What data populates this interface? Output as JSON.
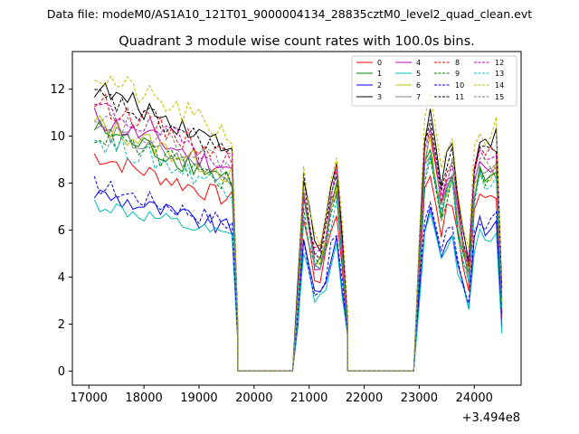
{
  "figure": {
    "suptitle": "Data file: modeM0/AS1A10_121T01_9000004134_28835cztM0_level2_quad_clean.evt"
  },
  "chart_data": {
    "type": "line",
    "title": "Quadrant 3 module wise count rates with 100.0s bins.",
    "xlabel": "",
    "ylabel": "",
    "offset_label": "+3.494e8",
    "xlim": [
      16700,
      24850
    ],
    "ylim": [
      -0.6,
      13.6
    ],
    "xticks": [
      17000,
      18000,
      19000,
      20000,
      21000,
      22000,
      23000,
      24000
    ],
    "xtick_labels": [
      "17000",
      "18000",
      "19000",
      "20000",
      "21000",
      "22000",
      "23000",
      "24000"
    ],
    "yticks": [
      0,
      2,
      4,
      6,
      8,
      10,
      12
    ],
    "ytick_labels": [
      "0",
      "2",
      "4",
      "6",
      "8",
      "10",
      "12"
    ],
    "legend_location": "top-right",
    "legend_columns": 4,
    "series": [
      {
        "name": "0",
        "color": "#ff0000",
        "dash": "solid",
        "level": 8.0,
        "noise": 0.6
      },
      {
        "name": "1",
        "color": "#008000",
        "dash": "solid",
        "level": 9.0,
        "noise": 0.7
      },
      {
        "name": "2",
        "color": "#0000ff",
        "dash": "solid",
        "level": 6.6,
        "noise": 0.6
      },
      {
        "name": "3",
        "color": "#000000",
        "dash": "solid",
        "level": 10.5,
        "noise": 0.7
      },
      {
        "name": "4",
        "color": "#bf00bf",
        "dash": "solid",
        "level": 9.4,
        "noise": 0.7
      },
      {
        "name": "5",
        "color": "#00bfbf",
        "dash": "solid",
        "level": 6.2,
        "noise": 0.5
      },
      {
        "name": "6",
        "color": "#bfbf00",
        "dash": "solid",
        "level": 9.2,
        "noise": 0.7
      },
      {
        "name": "7",
        "color": "#808080",
        "dash": "solid",
        "level": 9.0,
        "noise": 0.6
      },
      {
        "name": "8",
        "color": "#ff0000",
        "dash": "dashed",
        "level": 10.0,
        "noise": 0.7
      },
      {
        "name": "9",
        "color": "#008000",
        "dash": "dashed",
        "level": 8.8,
        "noise": 0.7
      },
      {
        "name": "10",
        "color": "#0000ff",
        "dash": "dashed",
        "level": 6.9,
        "noise": 0.6
      },
      {
        "name": "11",
        "color": "#000000",
        "dash": "dashed",
        "level": 10.2,
        "noise": 0.7
      },
      {
        "name": "12",
        "color": "#bf00bf",
        "dash": "dashed",
        "level": 9.8,
        "noise": 0.7
      },
      {
        "name": "13",
        "color": "#00bfbf",
        "dash": "dashed",
        "level": 8.6,
        "noise": 0.7
      },
      {
        "name": "14",
        "color": "#bfbf00",
        "dash": "dashed",
        "level": 11.0,
        "noise": 0.8
      },
      {
        "name": "15",
        "color": "#808080",
        "dash": "dashed",
        "level": 9.6,
        "noise": 0.7
      }
    ],
    "time_profile": {
      "bin_width": 100,
      "segments": [
        {
          "from": 17100,
          "to": 19650,
          "shape": "decay",
          "start_factor": 1.15,
          "end_factor": 0.9
        },
        {
          "from": 19700,
          "to": 20700,
          "shape": "zero"
        },
        {
          "from": 20800,
          "to": 21650,
          "shape": "double_peak",
          "factors": [
            0.35,
            0.8,
            0.65,
            0.5,
            0.5,
            0.6,
            0.75,
            0.85,
            0.55,
            0.2
          ]
        },
        {
          "from": 21700,
          "to": 22900,
          "shape": "zero"
        },
        {
          "from": 23000,
          "to": 24450,
          "shape": "active",
          "factors": [
            0.5,
            0.95,
            1.05,
            0.9,
            0.75,
            0.85,
            0.9,
            0.7,
            0.55,
            0.45,
            0.85,
            0.95,
            0.9,
            0.92,
            0.95,
            0.3
          ]
        }
      ]
    }
  }
}
